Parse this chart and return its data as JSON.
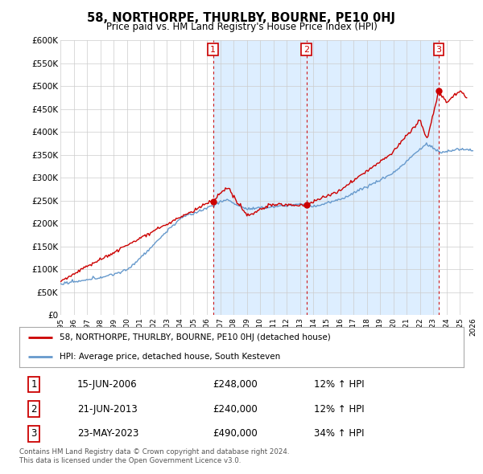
{
  "title": "58, NORTHORPE, THURLBY, BOURNE, PE10 0HJ",
  "subtitle": "Price paid vs. HM Land Registry's House Price Index (HPI)",
  "ylabel_ticks": [
    "£0",
    "£50K",
    "£100K",
    "£150K",
    "£200K",
    "£250K",
    "£300K",
    "£350K",
    "£400K",
    "£450K",
    "£500K",
    "£550K",
    "£600K"
  ],
  "ytick_values": [
    0,
    50000,
    100000,
    150000,
    200000,
    250000,
    300000,
    350000,
    400000,
    450000,
    500000,
    550000,
    600000
  ],
  "x_start_year": 1995,
  "x_end_year": 2026,
  "sale_years": [
    2006.46,
    2013.47,
    2023.39
  ],
  "sale_prices": [
    248000,
    240000,
    490000
  ],
  "sale_labels": [
    "1",
    "2",
    "3"
  ],
  "legend_line1": "58, NORTHORPE, THURLBY, BOURNE, PE10 0HJ (detached house)",
  "legend_line2": "HPI: Average price, detached house, South Kesteven",
  "table_rows": [
    {
      "label": "1",
      "date": "15-JUN-2006",
      "price": "£248,000",
      "hpi": "12% ↑ HPI"
    },
    {
      "label": "2",
      "date": "21-JUN-2013",
      "price": "£240,000",
      "hpi": "12% ↑ HPI"
    },
    {
      "label": "3",
      "date": "23-MAY-2023",
      "price": "£490,000",
      "hpi": "34% ↑ HPI"
    }
  ],
  "footer": "Contains HM Land Registry data © Crown copyright and database right 2024.\nThis data is licensed under the Open Government Licence v3.0.",
  "red_color": "#cc0000",
  "blue_color": "#6699cc",
  "blue_fill_color": "#ddeeff",
  "grid_color": "#cccccc",
  "background_color": "#ffffff"
}
